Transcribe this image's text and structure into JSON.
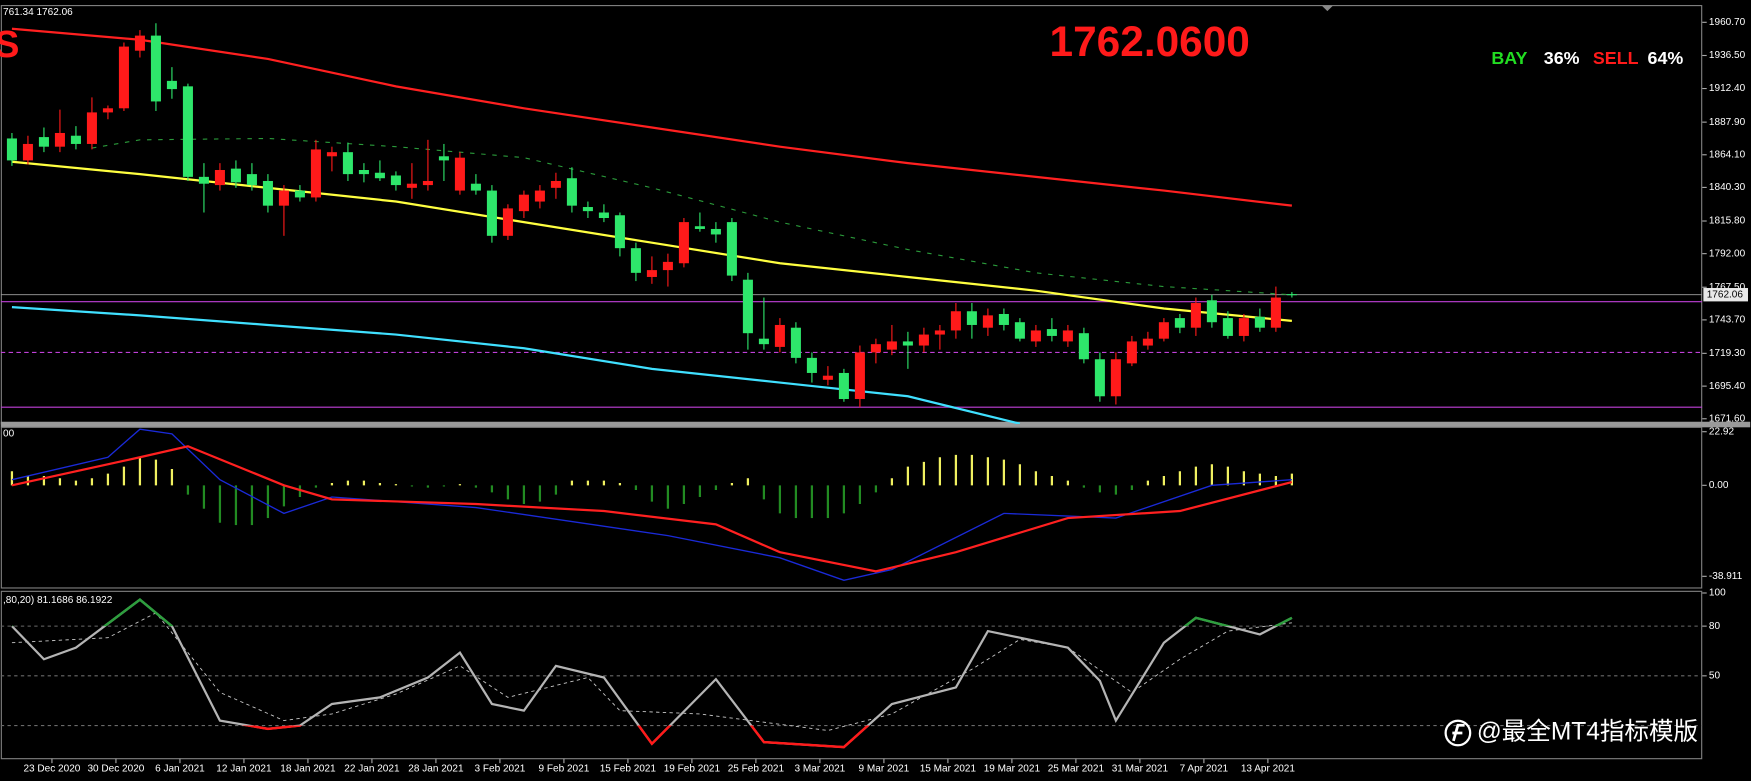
{
  "header_left": "761.34 1762.06",
  "corner_letter": "S",
  "big_price": "1762.0600",
  "sentiment": {
    "buy_label": "BAY",
    "buy_pct": "36%",
    "sell_label": "SELL",
    "sell_pct": "64%"
  },
  "watermark": "@最全MT4指标模版",
  "chart_data": [
    {
      "type": "candlestick",
      "ylim": [
        1667.8,
        1972.9
      ],
      "yticks": [
        {
          "value": 1960.7,
          "label": "1960.70"
        },
        {
          "value": 1936.5,
          "label": "1936.50"
        },
        {
          "value": 1912.4,
          "label": "1912.40"
        },
        {
          "value": 1887.9,
          "label": "1887.90"
        },
        {
          "value": 1864.1,
          "label": "1864.10"
        },
        {
          "value": 1840.3,
          "label": "1840.30"
        },
        {
          "value": 1815.8,
          "label": "1815.80"
        },
        {
          "value": 1792,
          "label": "1792.00"
        },
        {
          "value": 1767.5,
          "label": "1767.50"
        },
        {
          "value": 1743.7,
          "label": "1743.70"
        },
        {
          "value": 1719.3,
          "label": "1719.30"
        },
        {
          "value": 1695.4,
          "label": "1695.40"
        },
        {
          "value": 1671.6,
          "label": "1671.60"
        }
      ],
      "last_price": {
        "value": 1762.06,
        "label": "1762.06"
      },
      "candles": {
        "up_color": "#ff1a1a",
        "down_color": "#2ee66b",
        "open": [
          1876,
          1860,
          1877,
          1870,
          1878,
          1872,
          1895,
          1898,
          1940,
          1951,
          1918,
          1914,
          1848,
          1842,
          1854,
          1850,
          1845,
          1827,
          1838,
          1833,
          1863,
          1866,
          1853,
          1851,
          1849,
          1840,
          1842,
          1863,
          1838,
          1843,
          1838,
          1805,
          1823,
          1830,
          1840,
          1847,
          1826,
          1822,
          1820,
          1796,
          1775,
          1780,
          1785,
          1812,
          1810,
          1815,
          1773,
          1730,
          1724,
          1738,
          1716,
          1700,
          1705,
          1686,
          1720,
          1722,
          1728,
          1725,
          1733,
          1736,
          1750,
          1738,
          1748,
          1742,
          1728,
          1737,
          1728,
          1734,
          1715,
          1688,
          1712,
          1725,
          1730,
          1745,
          1738,
          1758,
          1745,
          1732,
          1746,
          1738,
          1762.5
        ],
        "high": [
          1880,
          1878,
          1884,
          1897,
          1885,
          1906,
          1900,
          1946,
          1955,
          1960,
          1928,
          1916,
          1858,
          1858,
          1860,
          1858,
          1850,
          1842,
          1842,
          1875,
          1870,
          1873,
          1858,
          1860,
          1852,
          1858,
          1875,
          1872,
          1866,
          1850,
          1842,
          1828,
          1838,
          1842,
          1851,
          1855,
          1830,
          1828,
          1822,
          1800,
          1790,
          1792,
          1818,
          1822,
          1815,
          1818,
          1778,
          1760,
          1745,
          1742,
          1720,
          1710,
          1708,
          1725,
          1730,
          1740,
          1735,
          1738,
          1740,
          1756,
          1756,
          1752,
          1752,
          1745,
          1740,
          1745,
          1740,
          1738,
          1720,
          1720,
          1732,
          1735,
          1745,
          1748,
          1760,
          1762,
          1750,
          1748,
          1752,
          1768,
          1764
        ],
        "low": [
          1856,
          1857,
          1866,
          1866,
          1868,
          1868,
          1890,
          1896,
          1935,
          1896,
          1905,
          1845,
          1822,
          1838,
          1840,
          1838,
          1822,
          1805,
          1830,
          1830,
          1852,
          1845,
          1844,
          1845,
          1838,
          1832,
          1838,
          1845,
          1835,
          1835,
          1800,
          1802,
          1818,
          1825,
          1832,
          1822,
          1818,
          1815,
          1790,
          1772,
          1770,
          1768,
          1782,
          1808,
          1800,
          1772,
          1722,
          1722,
          1720,
          1712,
          1698,
          1696,
          1684,
          1680,
          1712,
          1718,
          1708,
          1720,
          1722,
          1730,
          1730,
          1732,
          1736,
          1728,
          1724,
          1728,
          1724,
          1712,
          1684,
          1682,
          1710,
          1722,
          1728,
          1734,
          1732,
          1738,
          1730,
          1728,
          1735,
          1735,
          1760
        ],
        "close": [
          1860,
          1872,
          1870,
          1880,
          1872,
          1895,
          1898,
          1943,
          1951,
          1903,
          1912,
          1848,
          1843,
          1853,
          1844,
          1842,
          1827,
          1838,
          1833,
          1868,
          1866,
          1850,
          1850,
          1847,
          1842,
          1843,
          1845,
          1860,
          1862,
          1838,
          1805,
          1825,
          1835,
          1838,
          1845,
          1827,
          1823,
          1818,
          1796,
          1778,
          1780,
          1786,
          1815,
          1810,
          1806,
          1776,
          1734,
          1726,
          1740,
          1716,
          1705,
          1703,
          1686,
          1720,
          1726,
          1728,
          1725,
          1733,
          1736,
          1750,
          1740,
          1747,
          1740,
          1730,
          1736,
          1732,
          1736,
          1715,
          1688,
          1715,
          1728,
          1730,
          1742,
          1738,
          1756,
          1742,
          1732,
          1745,
          1738,
          1760,
          1762.06
        ]
      },
      "overlays": [
        {
          "color": "#ff2020",
          "x": [
            0,
            8,
            16,
            24,
            32,
            40,
            48,
            56,
            64,
            72,
            80
          ],
          "values": [
            1956,
            1948,
            1934,
            1914,
            1898,
            1884,
            1870,
            1858,
            1848,
            1838,
            1827
          ]
        },
        {
          "color": "#ffff40",
          "x": [
            0,
            8,
            16,
            24,
            32,
            40,
            48,
            56,
            64,
            72,
            80
          ],
          "values": [
            1859,
            1850,
            1840,
            1830,
            1815,
            1800,
            1785,
            1775,
            1765,
            1752,
            1743
          ]
        },
        {
          "color": "#40e0ff",
          "x": [
            0,
            8,
            16,
            24,
            32,
            40,
            48,
            56,
            63
          ],
          "values": [
            1753,
            1747,
            1740,
            1733,
            1723,
            1708,
            1698,
            1688,
            1668
          ]
        },
        {
          "color": "#2a9a3a",
          "dash": true,
          "x": [
            5,
            8,
            16,
            24,
            32,
            40,
            48,
            56,
            64,
            72,
            80
          ],
          "values": [
            1869,
            1875,
            1876,
            1870,
            1862,
            1840,
            1815,
            1795,
            1778,
            1768,
            1762
          ]
        }
      ],
      "levels": [
        {
          "value": 1757,
          "color": "#c040d8"
        },
        {
          "value": 1720,
          "color": "#c040d8",
          "dash": true
        },
        {
          "value": 1680,
          "color": "#c040d8"
        }
      ]
    },
    {
      "type": "macd",
      "header": "00",
      "ylim": [
        -43.9,
        24.8
      ],
      "yticks": [
        22.92,
        {
          "value": 0,
          "label": "0.00"
        },
        -38.911
      ],
      "histogram": {
        "pos_color": "#f0f060",
        "neg_color": "#228b22",
        "values": [
          6,
          4,
          4,
          3,
          2,
          3,
          5,
          8,
          12,
          11,
          7,
          -4,
          -10,
          -16,
          -17,
          -17,
          -14,
          -9,
          -5,
          -1,
          1,
          2,
          2,
          1,
          0.5,
          -0.5,
          -1,
          -0.5,
          0.5,
          -1,
          -3,
          -6,
          -8,
          -7,
          -4,
          2,
          2,
          2,
          1,
          -2,
          -7,
          -10,
          -8,
          -5,
          -2,
          1,
          3,
          -6,
          -12,
          -14,
          -14,
          -14,
          -12,
          -8,
          -3,
          3,
          8,
          10,
          12,
          13,
          13,
          12,
          11,
          9,
          6,
          4,
          2,
          -1,
          -3,
          -4,
          -2,
          2,
          4,
          6,
          8,
          9,
          8,
          6,
          5,
          4,
          5
        ]
      },
      "lines": [
        {
          "color": "#1a2ad8",
          "x": [
            0,
            6,
            8,
            10,
            13,
            17,
            20,
            29,
            41,
            48,
            52,
            55,
            62,
            69,
            75,
            80
          ],
          "values": [
            2.4,
            12,
            24,
            22,
            2.4,
            -12,
            -5,
            -9.5,
            -21.5,
            -31,
            -40.6,
            -36,
            -12,
            -14,
            0,
            2.4
          ]
        },
        {
          "color": "#ff2020",
          "x": [
            0,
            8,
            11,
            17,
            20,
            29,
            37,
            44,
            48,
            54,
            59,
            66,
            73,
            80
          ],
          "values": [
            0,
            12,
            16.7,
            0,
            -6,
            -8,
            -11,
            -16.7,
            -28.6,
            -36.8,
            -28.6,
            -14,
            -11,
            1.4
          ]
        }
      ]
    },
    {
      "type": "stochastic",
      "header": ",80,20) 81.1686 86.1922",
      "ylim": [
        0,
        101
      ],
      "yticks": [
        50,
        80,
        100
      ],
      "levels": [
        20,
        50,
        80
      ],
      "main": {
        "color": "#b4b4b4",
        "overbought_color": "#2e9e3e",
        "oversold_color": "#ff1a1a",
        "x": [
          0,
          2,
          4,
          8,
          10,
          13,
          16,
          18,
          20,
          23,
          26,
          28,
          30,
          32,
          34,
          37,
          40,
          44,
          47,
          52,
          55,
          59,
          61,
          66,
          68,
          69,
          72,
          74,
          78,
          80
        ],
        "values": [
          80,
          60,
          67,
          96,
          80,
          23,
          18,
          20,
          33,
          37,
          49,
          64,
          33,
          29,
          56,
          49,
          9,
          48,
          10,
          7,
          33,
          43,
          77,
          67,
          47,
          23,
          70,
          85,
          75,
          85
        ]
      },
      "signal": {
        "color": "#c8c8c8",
        "x": [
          0,
          6,
          9,
          13,
          17,
          20,
          24,
          28,
          31,
          36,
          38,
          43,
          47,
          51,
          55,
          60,
          63,
          66,
          70,
          73,
          76,
          80
        ],
        "values": [
          70,
          73,
          88,
          40,
          23,
          27,
          39,
          56,
          37,
          49,
          29,
          27,
          22,
          17,
          27,
          54,
          72,
          67,
          40,
          60,
          77,
          82
        ]
      },
      "xticks": [
        {
          "value": 2.5,
          "label": "23 Dec 2020"
        },
        {
          "value": 6.5,
          "label": "30 Dec 2020"
        },
        {
          "value": 10.5,
          "label": "6 Jan 2021"
        },
        {
          "value": 14.5,
          "label": "12 Jan 2021"
        },
        {
          "value": 18.5,
          "label": "18 Jan 2021"
        },
        {
          "value": 22.5,
          "label": "22 Jan 2021"
        },
        {
          "value": 26.5,
          "label": "28 Jan 2021"
        },
        {
          "value": 30.5,
          "label": "3 Feb 2021"
        },
        {
          "value": 34.5,
          "label": "9 Feb 2021"
        },
        {
          "value": 38.5,
          "label": "15 Feb 2021"
        },
        {
          "value": 42.5,
          "label": "19 Feb 2021"
        },
        {
          "value": 46.5,
          "label": "25 Feb 2021"
        },
        {
          "value": 50.5,
          "label": "3 Mar 2021"
        },
        {
          "value": 54.5,
          "label": "9 Mar 2021"
        },
        {
          "value": 58.5,
          "label": "15 Mar 2021"
        },
        {
          "value": 62.5,
          "label": "19 Mar 2021"
        },
        {
          "value": 66.5,
          "label": "25 Mar 2021"
        },
        {
          "value": 70.5,
          "label": "31 Mar 2021"
        },
        {
          "value": 74.5,
          "label": "7 Apr 2021"
        },
        {
          "value": 78.5,
          "label": "13 Apr 2021"
        }
      ]
    }
  ]
}
